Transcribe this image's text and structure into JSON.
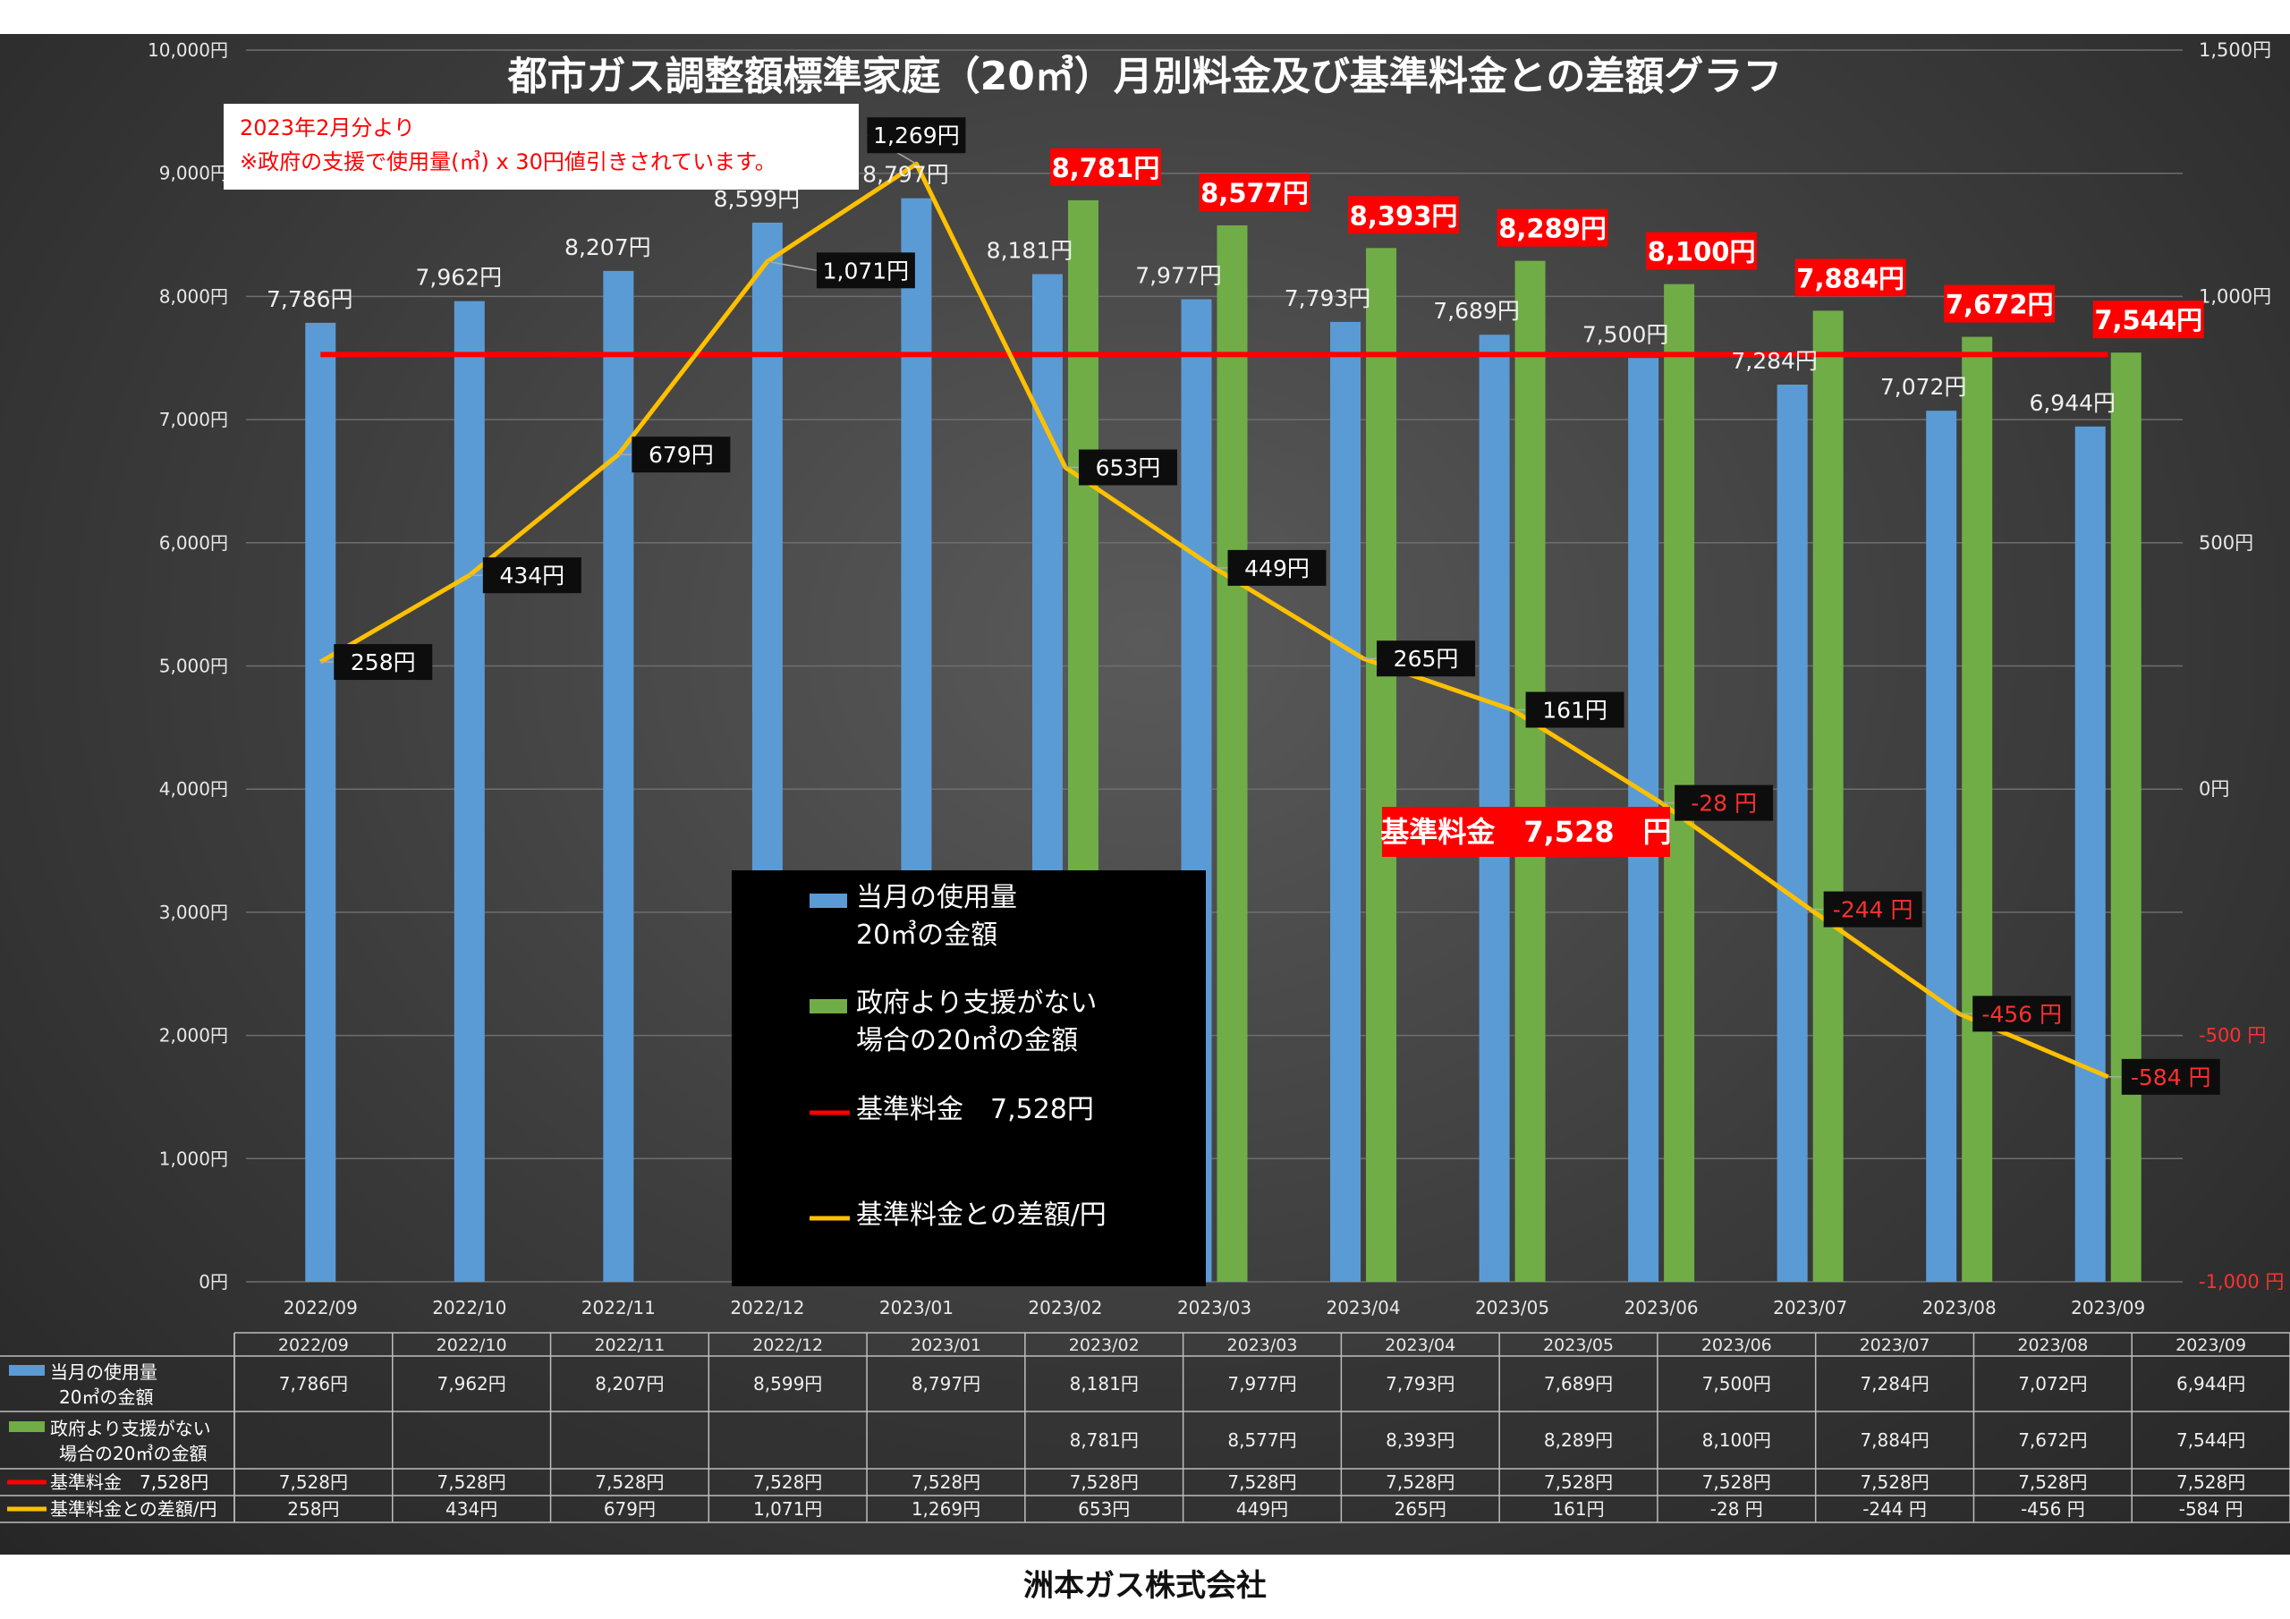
{
  "chart_data": {
    "type": "bar",
    "title": "都市ガス調整額標準家庭（20㎥）月別料金及び基準料金との差額グラフ",
    "note": [
      "2023年2月分より",
      "※政府の支援で使用量(㎥) x 30円値引きされています。"
    ],
    "categories": [
      "2022/09",
      "2022/10",
      "2022/11",
      "2022/12",
      "2023/01",
      "2023/02",
      "2023/03",
      "2023/04",
      "2023/05",
      "2023/06",
      "2023/07",
      "2023/08",
      "2023/09"
    ],
    "ylim": [
      0,
      10000
    ],
    "y_ticks": [
      "0円",
      "1,000円",
      "2,000円",
      "3,000円",
      "4,000円",
      "5,000円",
      "6,000円",
      "7,000円",
      "8,000円",
      "9,000円",
      "10,000円"
    ],
    "y2lim": [
      -1000,
      1500
    ],
    "y2_ticks": [
      "-1,000 円",
      "-500 円",
      "0円",
      "500円",
      "1,000円",
      "1,500円"
    ],
    "series": [
      {
        "name": "当月の使用量 20㎥の金額",
        "name_lines": [
          "当月の使用量",
          "20㎥の金額"
        ],
        "type": "bar",
        "axis": "left",
        "color": "#5b9bd5",
        "values": [
          7786,
          7962,
          8207,
          8599,
          8797,
          8181,
          7977,
          7793,
          7689,
          7500,
          7284,
          7072,
          6944
        ],
        "labels": [
          "7,786円",
          "7,962円",
          "8,207円",
          "8,599円",
          "8,797円",
          "8,181円",
          "7,977円",
          "7,793円",
          "7,689円",
          "7,500円",
          "7,284円",
          "7,072円",
          "6,944円"
        ]
      },
      {
        "name": "政府より支援がない 場合の20㎥の金額",
        "name_lines": [
          "政府より支援がない",
          "場合の20㎥の金額"
        ],
        "type": "bar",
        "axis": "left",
        "color": "#70ad47",
        "values": [
          null,
          null,
          null,
          null,
          null,
          8781,
          8577,
          8393,
          8289,
          8100,
          7884,
          7672,
          7544
        ],
        "labels": [
          "",
          "",
          "",
          "",
          "",
          "8,781円",
          "8,577円",
          "8,393円",
          "8,289円",
          "8,100円",
          "7,884円",
          "7,672円",
          "7,544円"
        ]
      },
      {
        "name": "基準料金 7,528円",
        "name_lines": [
          "基準料金　7,528円"
        ],
        "type": "line",
        "axis": "left",
        "color": "#ff0000",
        "values": [
          7528,
          7528,
          7528,
          7528,
          7528,
          7528,
          7528,
          7528,
          7528,
          7528,
          7528,
          7528,
          7528
        ],
        "labels": [
          "7,528円",
          "7,528円",
          "7,528円",
          "7,528円",
          "7,528円",
          "7,528円",
          "7,528円",
          "7,528円",
          "7,528円",
          "7,528円",
          "7,528円",
          "7,528円",
          "7,528円"
        ]
      },
      {
        "name": "基準料金との差額/円",
        "name_lines": [
          "基準料金との差額/円"
        ],
        "type": "line",
        "axis": "right",
        "color": "#ffc000",
        "values": [
          258,
          434,
          679,
          1071,
          1269,
          653,
          449,
          265,
          161,
          -28,
          -244,
          -456,
          -584
        ],
        "labels": [
          "258円",
          "434円",
          "679円",
          "1,071円",
          "1,269円",
          "653円",
          "449円",
          "265円",
          "161円",
          "-28 円",
          "-244 円",
          "-456 円",
          "-584 円"
        ]
      }
    ],
    "base_label": "基準料金　7,528　円",
    "legend_position": "bottom-center",
    "grid": true,
    "data_table": true,
    "table_label_lines": [
      [
        "当月の使用量",
        "20㎥の金額"
      ],
      [
        "政府より支援がない",
        "場合の20㎥の金額"
      ],
      [
        "基準料金　7,528円"
      ],
      [
        "基準料金との差額/円"
      ]
    ]
  },
  "colors": {
    "blue": "#5b9bd5",
    "green": "#70ad47",
    "red": "#ff0000",
    "gold": "#ffc000",
    "negative_text": "#ff3030"
  },
  "footer": "洲本ガス株式会社"
}
